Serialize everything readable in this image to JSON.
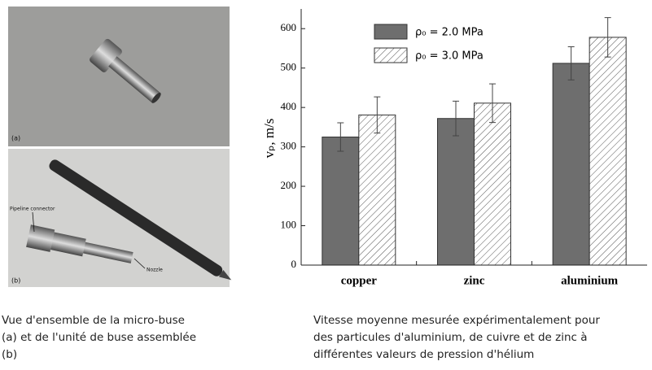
{
  "photos": {
    "top_label": "(a)",
    "bottom_label": "(b)",
    "connector_label": "Pipeline connector",
    "nozzle_label": "Nozzle"
  },
  "chart_data": {
    "type": "bar",
    "y_label": "vₚ, m/s",
    "categories": [
      "copper",
      "zinc",
      "aluminium"
    ],
    "series": [
      {
        "name": "ρ₀ = 2.0 MPa",
        "color": "#6e6e6e",
        "pattern": "solid",
        "values": [
          325,
          372,
          512
        ],
        "errors": [
          36,
          44,
          42
        ]
      },
      {
        "name": "ρ₀ = 3.0 MPa",
        "color": "#ffffff",
        "pattern": "hatch",
        "values": [
          381,
          411,
          578
        ],
        "errors": [
          46,
          49,
          50
        ]
      }
    ],
    "ylim": [
      0,
      650
    ],
    "yticks": [
      0,
      100,
      200,
      300,
      400,
      500,
      600
    ],
    "legend": "top-left"
  },
  "captions": {
    "left": [
      "Vue d'ensemble de la micro-buse",
      "(a) et de l'unité de buse assemblée",
      "(b)"
    ],
    "right": [
      "Vitesse moyenne mesurée expérimentalement pour",
      "des particules d'aluminium, de cuivre et de zinc à",
      "différentes valeurs de pression d'hélium"
    ]
  }
}
